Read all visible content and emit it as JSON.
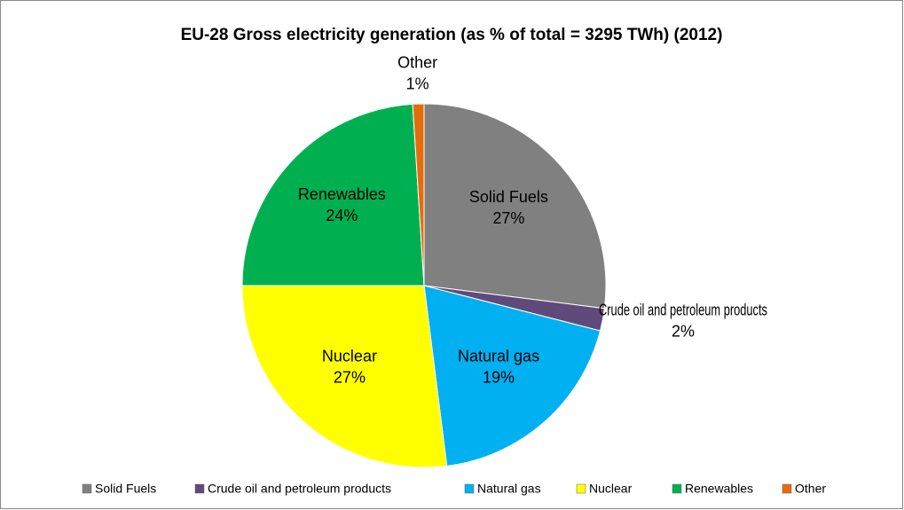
{
  "chart_data": {
    "type": "pie",
    "title": "EU-28 Gross electricity generation (as % of total = 3295 TWh) (2012)",
    "categories": [
      "Solid Fuels",
      "Crude oil and petroleum products",
      "Natural gas",
      "Nuclear",
      "Renewables",
      "Other"
    ],
    "values": [
      27,
      2,
      19,
      27,
      24,
      1
    ],
    "value_labels": [
      "27%",
      "2%",
      "19%",
      "27%",
      "24%",
      "1%"
    ],
    "colors": [
      "#808080",
      "#604a7b",
      "#00b0f0",
      "#ffff00",
      "#00b050",
      "#e46c0a"
    ],
    "legend": "bottom"
  }
}
